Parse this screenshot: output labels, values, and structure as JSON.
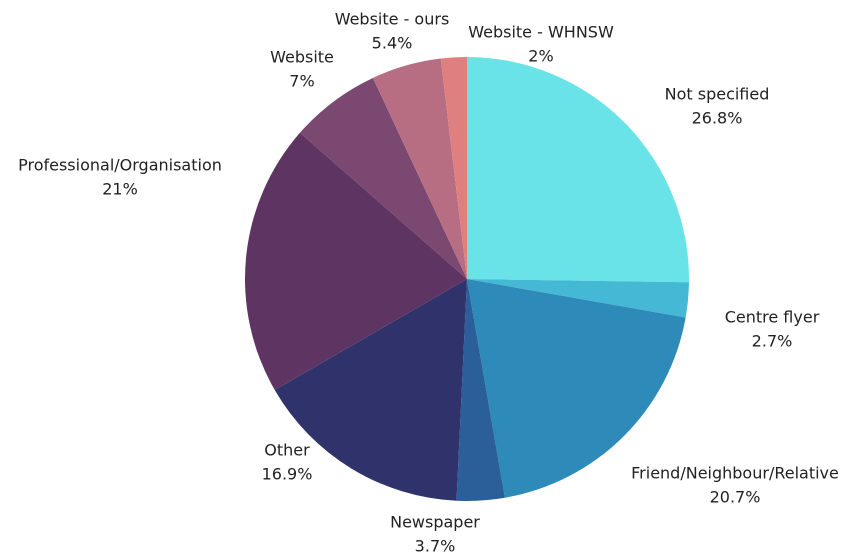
{
  "chart_data": {
    "type": "pie",
    "categories": [
      "Not specified",
      "Centre flyer",
      "Friend/Neighbour/Relative",
      "Newspaper",
      "Other",
      "Professional/Organisation",
      "Website",
      "Website - ours",
      "Website - WHNSW"
    ],
    "values": [
      26.8,
      2.7,
      20.7,
      3.7,
      16.9,
      21,
      7,
      5.4,
      2
    ],
    "value_labels": [
      "26.8%",
      "2.7%",
      "20.7%",
      "3.7%",
      "16.9%",
      "21%",
      "7%",
      "5.4%",
      "2%"
    ],
    "colors": [
      "#6ae3e8",
      "#45b8d6",
      "#2e8ab8",
      "#2b5f9a",
      "#30336b",
      "#5e3562",
      "#7a4870",
      "#b86e82",
      "#e07f80"
    ]
  }
}
